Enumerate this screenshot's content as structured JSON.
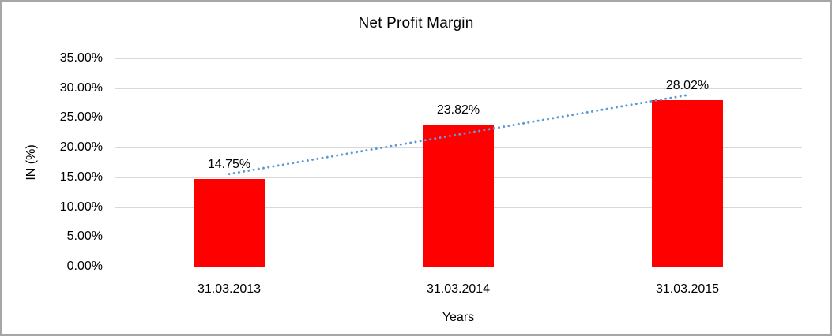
{
  "frame": {
    "background": "#ffffff",
    "border_color": "#a6a6a6"
  },
  "chart_data": {
    "type": "bar",
    "title": "Net Profit Margin",
    "xlabel": "Years",
    "ylabel": "IN (%)",
    "categories": [
      "31.03.2013",
      "31.03.2014",
      "31.03.2015"
    ],
    "values": [
      14.75,
      23.82,
      28.02
    ],
    "data_labels": [
      "14.75%",
      "23.82%",
      "28.02%"
    ],
    "ylim": [
      0,
      35
    ],
    "ytick_step": 5,
    "ytick_labels": [
      "0.00%",
      "5.00%",
      "10.00%",
      "15.00%",
      "20.00%",
      "25.00%",
      "30.00%",
      "35.00%"
    ],
    "grid": true,
    "legend": "none",
    "bar_color": "#ff0000",
    "gridline_color": "#d9d9d9",
    "axis_line_color": "#bfbfbf",
    "trendline": {
      "type": "linear",
      "style": "dotted",
      "color": "#5b9bd5"
    }
  }
}
